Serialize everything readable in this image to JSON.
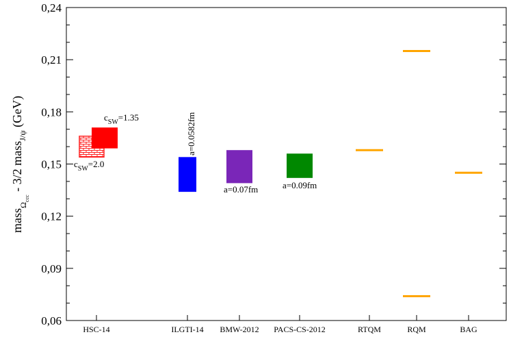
{
  "chart_data": {
    "type": "bar",
    "ylabel": {
      "t1": "mass",
      "s1": "Ω",
      "s1b": "ccc",
      "t2": " - 3/2 mass",
      "s2": "J/ψ",
      "t3": " (GeV)"
    },
    "ylim": [
      0.06,
      0.24
    ],
    "yticks": [
      "0,06",
      "0,09",
      "0,12",
      "0,15",
      "0,18",
      "0,21",
      "0,24"
    ],
    "categories": [
      "HSC-14",
      "ILGTI-14",
      "BMW-2012",
      "PACS-CS-2012",
      "RTQM",
      "RQM",
      "BAG"
    ],
    "colors": {
      "hsc_hatched": "#ff2020",
      "hsc_solid": "#ff0000",
      "ilgti": "#0000ff",
      "bmw": "#7a26b8",
      "pacs": "#008800",
      "model": "#ffa500"
    },
    "bands": [
      {
        "category": "HSC-14",
        "low": 0.154,
        "high": 0.166,
        "style": "hatched",
        "color_key": "hsc_hatched"
      },
      {
        "category": "HSC-14",
        "low": 0.159,
        "high": 0.171,
        "style": "solid",
        "color_key": "hsc_solid"
      },
      {
        "category": "ILGTI-14",
        "low": 0.134,
        "high": 0.154,
        "style": "solid",
        "color_key": "ilgti"
      },
      {
        "category": "BMW-2012",
        "low": 0.139,
        "high": 0.158,
        "style": "solid",
        "color_key": "bmw"
      },
      {
        "category": "PACS-CS-2012",
        "low": 0.142,
        "high": 0.156,
        "style": "solid",
        "color_key": "pacs"
      }
    ],
    "lines": [
      {
        "category": "RTQM",
        "value": 0.158
      },
      {
        "category": "RQM",
        "value": 0.215
      },
      {
        "category": "RQM",
        "value": 0.074
      },
      {
        "category": "BAG",
        "value": 0.145
      }
    ],
    "annotations": {
      "csw_135": {
        "base": "c",
        "sub": "SW",
        "rest": "=1.35"
      },
      "csw_20": {
        "base": "c",
        "sub": "SW",
        "rest": "=2.0"
      },
      "ilgti_a": "a=0.0582fm",
      "bmw_a": "a=0.07fm",
      "pacs_a": "a=0.09fm"
    }
  }
}
